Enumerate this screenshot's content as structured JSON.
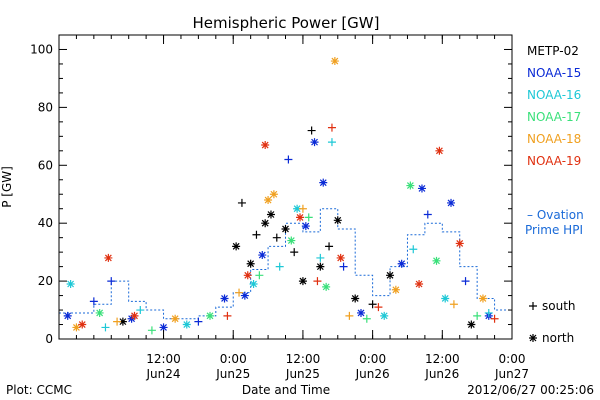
{
  "chart_data": {
    "type": "scatter",
    "title": "Hemispheric Power [GW]",
    "ylabel": "P [GW]",
    "xlabel": "Date and Time",
    "ylim": [
      0,
      105
    ],
    "xlim": [
      "2012-06-23T18:00",
      "2012-06-27T00:00"
    ],
    "grid": false,
    "legend_position": "right",
    "yticks": [
      0,
      20,
      40,
      60,
      80,
      100
    ],
    "xticks": [
      {
        "time": "2012-06-24T12:00",
        "line1": "12:00",
        "line2": "Jun24"
      },
      {
        "time": "2012-06-25T00:00",
        "line1": "0:00",
        "line2": "Jun25"
      },
      {
        "time": "2012-06-25T12:00",
        "line1": "12:00",
        "line2": "Jun25"
      },
      {
        "time": "2012-06-26T00:00",
        "line1": "0:00",
        "line2": "Jun26"
      },
      {
        "time": "2012-06-26T12:00",
        "line1": "12:00",
        "line2": "Jun26"
      },
      {
        "time": "2012-06-27T00:00",
        "line1": "0:00",
        "line2": "Jun27"
      }
    ],
    "series": [
      {
        "name": "METP-02",
        "color": "#000000",
        "points": [
          {
            "t": "2012-06-24T05:00",
            "v": 6,
            "m": "north"
          },
          {
            "t": "2012-06-25T00:30",
            "v": 32,
            "m": "north"
          },
          {
            "t": "2012-06-25T01:30",
            "v": 47,
            "m": "south"
          },
          {
            "t": "2012-06-25T03:00",
            "v": 26,
            "m": "north"
          },
          {
            "t": "2012-06-25T04:00",
            "v": 36,
            "m": "south"
          },
          {
            "t": "2012-06-25T05:30",
            "v": 40,
            "m": "north"
          },
          {
            "t": "2012-06-25T06:30",
            "v": 43,
            "m": "north"
          },
          {
            "t": "2012-06-25T07:30",
            "v": 35,
            "m": "south"
          },
          {
            "t": "2012-06-25T09:00",
            "v": 38,
            "m": "north"
          },
          {
            "t": "2012-06-25T10:30",
            "v": 30,
            "m": "south"
          },
          {
            "t": "2012-06-25T12:00",
            "v": 20,
            "m": "north"
          },
          {
            "t": "2012-06-25T13:30",
            "v": 72,
            "m": "south"
          },
          {
            "t": "2012-06-25T15:00",
            "v": 25,
            "m": "north"
          },
          {
            "t": "2012-06-25T16:30",
            "v": 32,
            "m": "south"
          },
          {
            "t": "2012-06-25T18:00",
            "v": 41,
            "m": "north"
          },
          {
            "t": "2012-06-25T21:00",
            "v": 14,
            "m": "north"
          },
          {
            "t": "2012-06-26T00:00",
            "v": 12,
            "m": "south"
          },
          {
            "t": "2012-06-26T03:00",
            "v": 22,
            "m": "north"
          },
          {
            "t": "2012-06-26T17:00",
            "v": 5,
            "m": "north"
          }
        ]
      },
      {
        "name": "NOAA-15",
        "color": "#0a2ad6",
        "points": [
          {
            "t": "2012-06-23T19:30",
            "v": 8,
            "m": "north"
          },
          {
            "t": "2012-06-24T00:00",
            "v": 13,
            "m": "south"
          },
          {
            "t": "2012-06-24T03:00",
            "v": 20,
            "m": "south"
          },
          {
            "t": "2012-06-24T06:30",
            "v": 7,
            "m": "north"
          },
          {
            "t": "2012-06-24T12:00",
            "v": 4,
            "m": "north"
          },
          {
            "t": "2012-06-24T18:00",
            "v": 6,
            "m": "south"
          },
          {
            "t": "2012-06-24T22:30",
            "v": 14,
            "m": "north"
          },
          {
            "t": "2012-06-25T02:00",
            "v": 15,
            "m": "north"
          },
          {
            "t": "2012-06-25T05:00",
            "v": 29,
            "m": "north"
          },
          {
            "t": "2012-06-25T09:30",
            "v": 62,
            "m": "south"
          },
          {
            "t": "2012-06-25T12:30",
            "v": 39,
            "m": "north"
          },
          {
            "t": "2012-06-25T14:00",
            "v": 68,
            "m": "north"
          },
          {
            "t": "2012-06-25T15:30",
            "v": 54,
            "m": "north"
          },
          {
            "t": "2012-06-25T19:00",
            "v": 25,
            "m": "south"
          },
          {
            "t": "2012-06-25T22:00",
            "v": 9,
            "m": "north"
          },
          {
            "t": "2012-06-26T05:00",
            "v": 26,
            "m": "north"
          },
          {
            "t": "2012-06-26T08:30",
            "v": 52,
            "m": "north"
          },
          {
            "t": "2012-06-26T09:30",
            "v": 43,
            "m": "south"
          },
          {
            "t": "2012-06-26T13:30",
            "v": 47,
            "m": "north"
          },
          {
            "t": "2012-06-26T16:00",
            "v": 20,
            "m": "south"
          },
          {
            "t": "2012-06-26T20:00",
            "v": 8,
            "m": "north"
          }
        ]
      },
      {
        "name": "NOAA-16",
        "color": "#1ec8d6",
        "points": [
          {
            "t": "2012-06-23T20:00",
            "v": 19,
            "m": "north"
          },
          {
            "t": "2012-06-24T02:00",
            "v": 4,
            "m": "south"
          },
          {
            "t": "2012-06-24T08:00",
            "v": 10,
            "m": "south"
          },
          {
            "t": "2012-06-24T16:00",
            "v": 5,
            "m": "north"
          },
          {
            "t": "2012-06-25T03:30",
            "v": 19,
            "m": "north"
          },
          {
            "t": "2012-06-25T08:00",
            "v": 25,
            "m": "south"
          },
          {
            "t": "2012-06-25T11:00",
            "v": 45,
            "m": "north"
          },
          {
            "t": "2012-06-25T15:00",
            "v": 28,
            "m": "south"
          },
          {
            "t": "2012-06-25T17:00",
            "v": 68,
            "m": "south"
          },
          {
            "t": "2012-06-26T02:00",
            "v": 8,
            "m": "north"
          },
          {
            "t": "2012-06-26T07:00",
            "v": 31,
            "m": "south"
          },
          {
            "t": "2012-06-26T12:30",
            "v": 14,
            "m": "north"
          },
          {
            "t": "2012-06-26T20:00",
            "v": 9,
            "m": "south"
          }
        ]
      },
      {
        "name": "NOAA-17",
        "color": "#3ae07a",
        "points": [
          {
            "t": "2012-06-24T01:00",
            "v": 9,
            "m": "north"
          },
          {
            "t": "2012-06-24T10:00",
            "v": 3,
            "m": "south"
          },
          {
            "t": "2012-06-24T20:00",
            "v": 8,
            "m": "north"
          },
          {
            "t": "2012-06-25T04:30",
            "v": 22,
            "m": "south"
          },
          {
            "t": "2012-06-25T10:00",
            "v": 34,
            "m": "north"
          },
          {
            "t": "2012-06-25T13:00",
            "v": 42,
            "m": "south"
          },
          {
            "t": "2012-06-25T16:00",
            "v": 18,
            "m": "north"
          },
          {
            "t": "2012-06-25T23:00",
            "v": 7,
            "m": "south"
          },
          {
            "t": "2012-06-26T06:30",
            "v": 53,
            "m": "north"
          },
          {
            "t": "2012-06-26T11:00",
            "v": 27,
            "m": "north"
          },
          {
            "t": "2012-06-26T18:00",
            "v": 8,
            "m": "south"
          }
        ]
      },
      {
        "name": "NOAA-18",
        "color": "#f0a020",
        "points": [
          {
            "t": "2012-06-23T21:00",
            "v": 4,
            "m": "north"
          },
          {
            "t": "2012-06-24T04:00",
            "v": 6,
            "m": "south"
          },
          {
            "t": "2012-06-24T14:00",
            "v": 7,
            "m": "north"
          },
          {
            "t": "2012-06-25T01:00",
            "v": 16,
            "m": "south"
          },
          {
            "t": "2012-06-25T06:00",
            "v": 48,
            "m": "north"
          },
          {
            "t": "2012-06-25T07:00",
            "v": 50,
            "m": "north"
          },
          {
            "t": "2012-06-25T12:00",
            "v": 45,
            "m": "south"
          },
          {
            "t": "2012-06-25T17:30",
            "v": 96,
            "m": "north"
          },
          {
            "t": "2012-06-25T20:00",
            "v": 8,
            "m": "south"
          },
          {
            "t": "2012-06-26T04:00",
            "v": 17,
            "m": "north"
          },
          {
            "t": "2012-06-26T14:00",
            "v": 12,
            "m": "south"
          },
          {
            "t": "2012-06-26T19:00",
            "v": 14,
            "m": "north"
          }
        ]
      },
      {
        "name": "NOAA-19",
        "color": "#e03010",
        "points": [
          {
            "t": "2012-06-23T22:00",
            "v": 5,
            "m": "north"
          },
          {
            "t": "2012-06-24T02:30",
            "v": 28,
            "m": "north"
          },
          {
            "t": "2012-06-24T07:00",
            "v": 8,
            "m": "north"
          },
          {
            "t": "2012-06-24T23:00",
            "v": 8,
            "m": "south"
          },
          {
            "t": "2012-06-25T02:30",
            "v": 22,
            "m": "north"
          },
          {
            "t": "2012-06-25T05:30",
            "v": 67,
            "m": "north"
          },
          {
            "t": "2012-06-25T11:30",
            "v": 42,
            "m": "north"
          },
          {
            "t": "2012-06-25T14:30",
            "v": 20,
            "m": "south"
          },
          {
            "t": "2012-06-25T17:00",
            "v": 73,
            "m": "south"
          },
          {
            "t": "2012-06-25T18:30",
            "v": 28,
            "m": "north"
          },
          {
            "t": "2012-06-26T01:00",
            "v": 11,
            "m": "south"
          },
          {
            "t": "2012-06-26T08:00",
            "v": 19,
            "m": "north"
          },
          {
            "t": "2012-06-26T11:30",
            "v": 65,
            "m": "north"
          },
          {
            "t": "2012-06-26T15:00",
            "v": 33,
            "m": "north"
          },
          {
            "t": "2012-06-26T21:00",
            "v": 7,
            "m": "south"
          }
        ]
      }
    ],
    "ovation_prime_hpi": {
      "name_line1": "– Ovation",
      "name_line2": "Prime HPI",
      "color": "#1a6ad8",
      "values": [
        {
          "t": "2012-06-23T18:00",
          "v": 9
        },
        {
          "t": "2012-06-24T00:00",
          "v": 12
        },
        {
          "t": "2012-06-24T03:00",
          "v": 20
        },
        {
          "t": "2012-06-24T06:00",
          "v": 13
        },
        {
          "t": "2012-06-24T09:00",
          "v": 10
        },
        {
          "t": "2012-06-24T12:00",
          "v": 7
        },
        {
          "t": "2012-06-24T18:00",
          "v": 8
        },
        {
          "t": "2012-06-24T21:00",
          "v": 11
        },
        {
          "t": "2012-06-25T00:00",
          "v": 16
        },
        {
          "t": "2012-06-25T03:00",
          "v": 24
        },
        {
          "t": "2012-06-25T06:00",
          "v": 32
        },
        {
          "t": "2012-06-25T09:00",
          "v": 40
        },
        {
          "t": "2012-06-25T12:00",
          "v": 37
        },
        {
          "t": "2012-06-25T15:00",
          "v": 45
        },
        {
          "t": "2012-06-25T18:00",
          "v": 38
        },
        {
          "t": "2012-06-25T21:00",
          "v": 22
        },
        {
          "t": "2012-06-26T00:00",
          "v": 15
        },
        {
          "t": "2012-06-26T03:00",
          "v": 25
        },
        {
          "t": "2012-06-26T06:00",
          "v": 36
        },
        {
          "t": "2012-06-26T09:00",
          "v": 40
        },
        {
          "t": "2012-06-26T12:00",
          "v": 37
        },
        {
          "t": "2012-06-26T15:00",
          "v": 25
        },
        {
          "t": "2012-06-26T18:00",
          "v": 14
        },
        {
          "t": "2012-06-26T21:00",
          "v": 10
        },
        {
          "t": "2012-06-27T00:00",
          "v": 8
        }
      ]
    },
    "marker_legend": {
      "south_label": "south",
      "north_label": "north"
    }
  },
  "footer": {
    "plot_credit": "Plot: CCMC",
    "timestamp": "2012/06/27 00:25:06"
  }
}
